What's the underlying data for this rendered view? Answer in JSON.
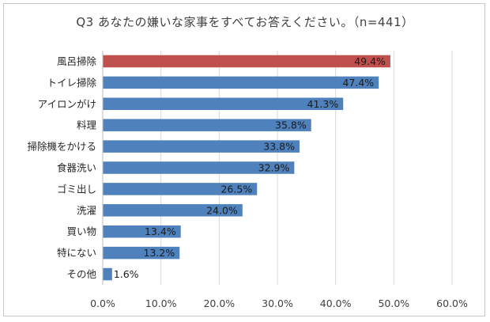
{
  "chart_data": {
    "type": "bar",
    "orientation": "horizontal",
    "title": "Q3 あなたの嫌いな家事をすべてお答えください。（n=441）",
    "categories": [
      "風呂掃除",
      "トイレ掃除",
      "アイロンがけ",
      "料理",
      "掃除機をかける",
      "食器洗い",
      "ゴミ出し",
      "洗濯",
      "買い物",
      "特にない",
      "その他"
    ],
    "values": [
      49.4,
      47.4,
      41.3,
      35.8,
      33.8,
      32.9,
      26.5,
      24.0,
      13.4,
      13.2,
      1.6
    ],
    "data_labels": [
      "49.4%",
      "47.4%",
      "41.3%",
      "35.8%",
      "33.8%",
      "32.9%",
      "26.5%",
      "24.0%",
      "13.4%",
      "13.2%",
      "1.6%"
    ],
    "xlim": [
      0,
      60
    ],
    "xticks": [
      0,
      10,
      20,
      30,
      40,
      50,
      60
    ],
    "xtick_labels": [
      "0.0%",
      "10.0%",
      "20.0%",
      "30.0%",
      "40.0%",
      "50.0%",
      "60.0%"
    ],
    "xlabel": "",
    "ylabel": "",
    "grid": true,
    "colors": {
      "bar": "#4f81bd",
      "highlight": "#c0504d",
      "grid": "#d9d9d9",
      "axis": "#bfbfbf"
    },
    "highlight_index": 0
  }
}
